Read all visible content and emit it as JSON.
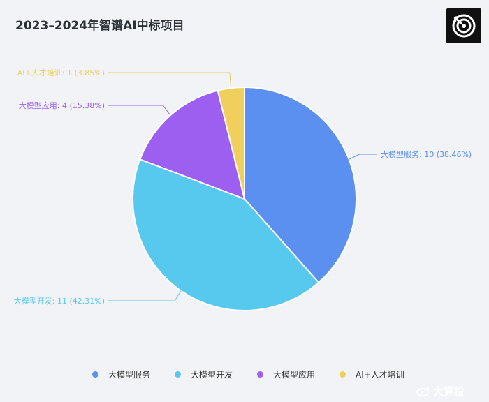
{
  "title": "2023–2024年智谱AI中标项目",
  "watermark": "大算投",
  "chart_data": {
    "type": "pie",
    "title": "2023–2024年智谱AI中标项目",
    "start_angle_deg": 90,
    "direction": "clockwise",
    "legend_position": "bottom",
    "slices": [
      {
        "name": "大模型服务",
        "value": 10,
        "percent": 38.46,
        "color": "#5b8ff0",
        "label": "大模型服务: 10 (38.46%)"
      },
      {
        "name": "大模型开发",
        "value": 11,
        "percent": 42.31,
        "color": "#57c9ee",
        "label": "大模型开发: 11 (42.31%)"
      },
      {
        "name": "大模型应用",
        "value": 4,
        "percent": 15.38,
        "color": "#9d5ff0",
        "label": "大模型应用: 4 (15.38%)"
      },
      {
        "name": "AI+人才培训",
        "value": 1,
        "percent": 3.85,
        "color": "#f1cf5c",
        "label": "AI+人才培训: 1 (3.85%)"
      }
    ]
  }
}
